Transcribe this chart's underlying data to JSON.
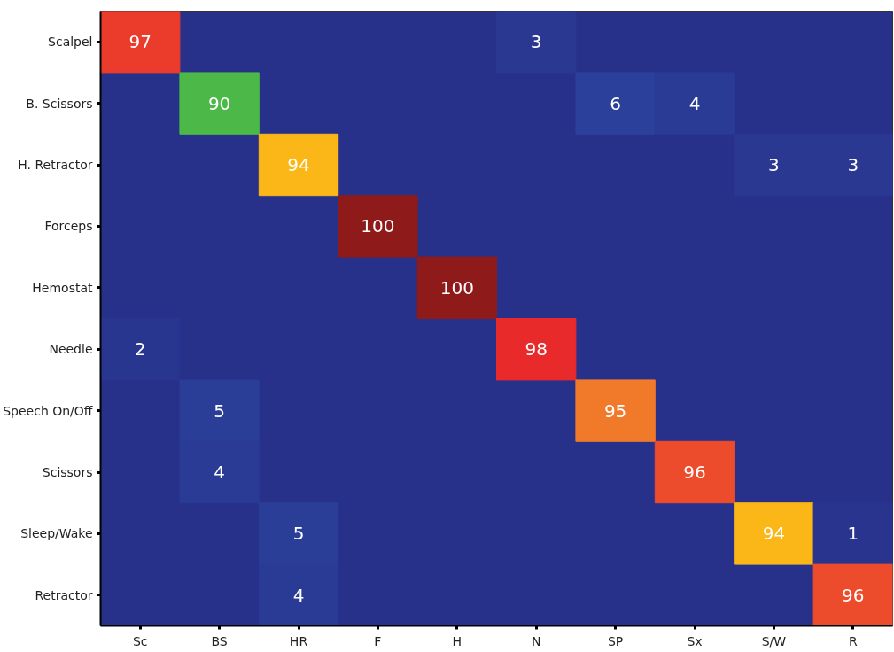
{
  "chart_data": {
    "type": "heatmap",
    "categories": [
      "Sc",
      "BS",
      "HR",
      "F",
      "H",
      "N",
      "SP",
      "Sx",
      "S/W",
      "R"
    ],
    "y_categories": [
      "Scalpel",
      "B. Scissors",
      "H. Retractor",
      "Forceps",
      "Hemostat",
      "Needle",
      "Speech On/Off",
      "Scissors",
      "Sleep/Wake",
      "Retractor"
    ],
    "cells": [
      [
        97,
        null,
        null,
        null,
        null,
        3,
        null,
        null,
        null,
        null
      ],
      [
        null,
        90,
        null,
        null,
        null,
        null,
        6,
        4,
        null,
        null
      ],
      [
        null,
        null,
        94,
        null,
        null,
        null,
        null,
        null,
        3,
        3
      ],
      [
        null,
        null,
        null,
        100,
        null,
        null,
        null,
        null,
        null,
        null
      ],
      [
        null,
        null,
        null,
        null,
        100,
        null,
        null,
        null,
        null,
        null
      ],
      [
        2,
        null,
        null,
        null,
        null,
        98,
        null,
        null,
        null,
        null
      ],
      [
        null,
        5,
        null,
        null,
        null,
        null,
        95,
        null,
        null,
        null
      ],
      [
        null,
        4,
        null,
        null,
        null,
        null,
        null,
        96,
        null,
        null
      ],
      [
        null,
        null,
        5,
        null,
        null,
        null,
        null,
        null,
        94,
        1
      ],
      [
        null,
        null,
        4,
        null,
        null,
        null,
        null,
        null,
        null,
        96
      ]
    ],
    "data_labels": true,
    "grid": false
  }
}
